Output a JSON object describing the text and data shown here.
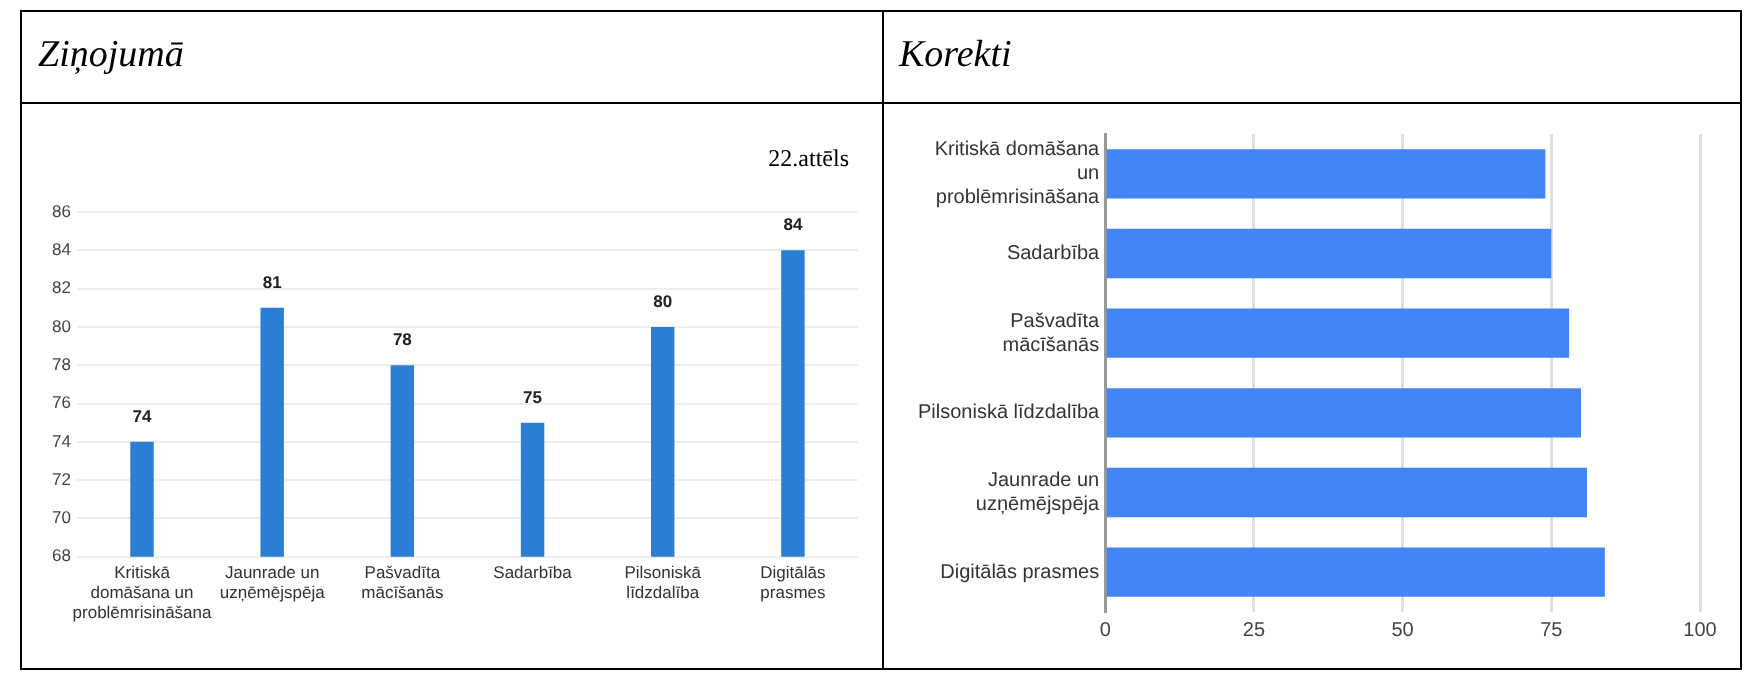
{
  "chart_data": [
    {
      "type": "bar",
      "title": "Ziņojumā",
      "annotations": [
        "22.attēls"
      ],
      "categories": [
        "Kritiskā domāšana un problēmrisināšana",
        "Jaunrade un uzņēmējspēja",
        "Pašvadīta mācīšanās",
        "Sadarbība",
        "Pilsoniskā līdzdalība",
        "Digitālās prasmes"
      ],
      "values": [
        74,
        81,
        78,
        75,
        80,
        84
      ],
      "color": "#2a7fd4",
      "ylim": [
        68,
        86
      ],
      "yticks": [
        68,
        70,
        72,
        74,
        76,
        78,
        80,
        82,
        84,
        86
      ],
      "grid": "y",
      "data_labels": true
    },
    {
      "type": "bar",
      "title": "Korekti",
      "orientation": "horizontal",
      "categories": [
        "Kritiskā domāšana un problēmrisināšana",
        "Sadarbība",
        "Pašvadīta mācīšanās",
        "Pilsoniskā līdzdalība",
        "Jaunrade un uzņēmējspēja",
        "Digitālās prasmes"
      ],
      "values": [
        74,
        75,
        78,
        80,
        81,
        84
      ],
      "color": "#4285f4",
      "xlim": [
        0,
        100
      ],
      "xticks": [
        0,
        25,
        50,
        75,
        100
      ],
      "grid": "x"
    }
  ]
}
